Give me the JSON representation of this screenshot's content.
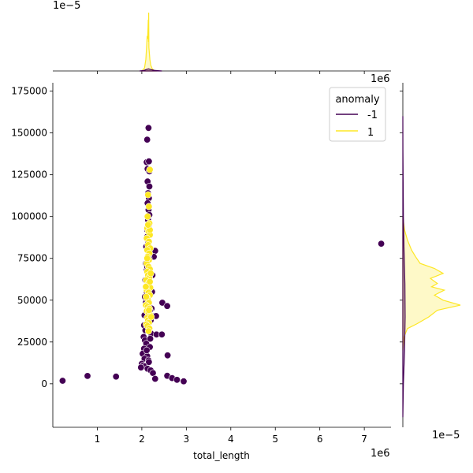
{
  "chart_data": {
    "type": "scatter",
    "title": "",
    "xlabel": "total_length",
    "ylabel": "",
    "x_offset_label": "1e6",
    "y_offset_label": "1e6",
    "top_marginal_offset_label": "1e−5",
    "right_marginal_offset_label": "1e−5",
    "xlim": [
      0.0,
      7.6
    ],
    "ylim": [
      -26000,
      180000
    ],
    "x_ticks": [
      1,
      2,
      3,
      4,
      5,
      6,
      7
    ],
    "y_ticks": [
      0,
      25000,
      50000,
      75000,
      100000,
      125000,
      150000,
      175000
    ],
    "grid": false,
    "legend": {
      "title": "anomaly",
      "placement": "top-right",
      "entries": [
        {
          "label": "-1",
          "color": "#440154"
        },
        {
          "label": "1",
          "color": "#fde725"
        }
      ]
    },
    "series": [
      {
        "name": "-1",
        "color": "#440154",
        "points": [
          [
            0.22,
            1800
          ],
          [
            0.78,
            4700
          ],
          [
            1.42,
            4300
          ],
          [
            7.38,
            83800
          ],
          [
            2.15,
            153000
          ],
          [
            2.12,
            146000
          ],
          [
            2.11,
            132500
          ],
          [
            2.16,
            133000
          ],
          [
            2.13,
            128500
          ],
          [
            2.17,
            127000
          ],
          [
            2.13,
            121000
          ],
          [
            2.17,
            118000
          ],
          [
            2.14,
            114000
          ],
          [
            2.16,
            111000
          ],
          [
            2.13,
            108000
          ],
          [
            2.15,
            104000
          ],
          [
            2.17,
            101000
          ],
          [
            2.14,
            98000
          ],
          [
            2.16,
            95000
          ],
          [
            2.12,
            92000
          ],
          [
            2.3,
            79500
          ],
          [
            2.27,
            76000
          ],
          [
            2.1,
            82000
          ],
          [
            2.12,
            88000
          ],
          [
            2.14,
            85000
          ],
          [
            2.09,
            72000
          ],
          [
            2.11,
            68000
          ],
          [
            2.24,
            65000
          ],
          [
            2.08,
            62000
          ],
          [
            2.1,
            58000
          ],
          [
            2.23,
            55000
          ],
          [
            2.07,
            52000
          ],
          [
            2.09,
            48500
          ],
          [
            2.22,
            45000
          ],
          [
            2.06,
            41000
          ],
          [
            2.29,
            40500
          ],
          [
            2.2,
            38000
          ],
          [
            2.05,
            35000
          ],
          [
            2.08,
            32000
          ],
          [
            2.21,
            30000
          ],
          [
            2.04,
            28000
          ],
          [
            2.07,
            26000
          ],
          [
            2.1,
            24000
          ],
          [
            2.18,
            22000
          ],
          [
            2.05,
            21000
          ],
          [
            2.09,
            19000
          ],
          [
            2.02,
            18000
          ],
          [
            2.12,
            16500
          ],
          [
            2.06,
            15000
          ],
          [
            2.15,
            14000
          ],
          [
            2.0,
            12000
          ],
          [
            2.03,
            11000
          ],
          [
            2.08,
            10500
          ],
          [
            1.98,
            9800
          ],
          [
            2.13,
            9000
          ],
          [
            2.2,
            8000
          ],
          [
            2.25,
            6500
          ],
          [
            2.3,
            3000
          ],
          [
            2.33,
            29500
          ],
          [
            2.46,
            48500
          ],
          [
            2.57,
            46500
          ],
          [
            2.45,
            29500
          ],
          [
            2.58,
            17000
          ],
          [
            2.57,
            4800
          ],
          [
            2.68,
            3400
          ],
          [
            2.79,
            2400
          ],
          [
            2.94,
            1500
          ],
          [
            2.32,
            40500
          ],
          [
            2.11,
            55000
          ],
          [
            2.13,
            60000
          ],
          [
            2.12,
            70000
          ],
          [
            2.16,
            75000
          ],
          [
            2.18,
            44000
          ],
          [
            2.14,
            36000
          ],
          [
            2.19,
            27000
          ],
          [
            2.11,
            20000
          ],
          [
            2.16,
            13000
          ]
        ]
      },
      {
        "name": "1",
        "color": "#fde725",
        "points": [
          [
            2.18,
            128000
          ],
          [
            2.14,
            113000
          ],
          [
            2.16,
            106000
          ],
          [
            2.13,
            100000
          ],
          [
            2.17,
            96000
          ],
          [
            2.12,
            93000
          ],
          [
            2.15,
            91000
          ],
          [
            2.18,
            89000
          ],
          [
            2.11,
            87000
          ],
          [
            2.16,
            85000
          ],
          [
            2.14,
            83000
          ],
          [
            2.19,
            81000
          ],
          [
            2.12,
            80000
          ],
          [
            2.17,
            78000
          ],
          [
            2.13,
            76000
          ],
          [
            2.16,
            74000
          ],
          [
            2.11,
            72000
          ],
          [
            2.15,
            70000
          ],
          [
            2.18,
            68500
          ],
          [
            2.12,
            67000
          ],
          [
            2.14,
            65000
          ],
          [
            2.17,
            63500
          ],
          [
            2.1,
            62000
          ],
          [
            2.16,
            60500
          ],
          [
            2.13,
            59000
          ],
          [
            2.19,
            57500
          ],
          [
            2.11,
            56000
          ],
          [
            2.15,
            54500
          ],
          [
            2.18,
            53000
          ],
          [
            2.12,
            51500
          ],
          [
            2.14,
            50000
          ],
          [
            2.16,
            48500
          ],
          [
            2.09,
            47000
          ],
          [
            2.13,
            46000
          ],
          [
            2.17,
            45000
          ],
          [
            2.11,
            43500
          ],
          [
            2.15,
            42000
          ],
          [
            2.19,
            41000
          ],
          [
            2.12,
            39500
          ],
          [
            2.14,
            38000
          ],
          [
            2.16,
            36500
          ],
          [
            2.1,
            35500
          ],
          [
            2.13,
            34500
          ],
          [
            2.17,
            33000
          ],
          [
            2.15,
            31500
          ],
          [
            2.21,
            40000
          ],
          [
            2.2,
            66000
          ],
          [
            2.09,
            58000
          ],
          [
            2.18,
            92000
          ],
          [
            2.14,
            95000
          ],
          [
            2.12,
            75000
          ],
          [
            2.18,
            61000
          ],
          [
            2.1,
            52000
          ],
          [
            2.16,
            44000
          ]
        ]
      }
    ],
    "marginal_x": {
      "curves": [
        {
          "name": "1",
          "color": "#fde725",
          "x": [
            2.0,
            2.06,
            2.09,
            2.11,
            2.12,
            2.13,
            2.14,
            2.145,
            2.15,
            2.155,
            2.16,
            2.17,
            2.18,
            2.2,
            2.24,
            2.3
          ],
          "density": [
            0.0,
            0.05,
            0.2,
            0.45,
            0.6,
            0.55,
            0.75,
            0.88,
            0.5,
            1.0,
            0.4,
            0.3,
            0.2,
            0.1,
            0.03,
            0.0
          ]
        },
        {
          "name": "-1",
          "color": "#440154",
          "x": [
            1.95,
            2.05,
            2.1,
            2.15,
            2.2,
            2.3,
            2.45
          ],
          "density": [
            0.0,
            0.01,
            0.025,
            0.035,
            0.025,
            0.008,
            0.0
          ]
        }
      ]
    },
    "marginal_y": {
      "curves": [
        {
          "name": "1",
          "color": "#fde725",
          "y": [
            20000,
            28000,
            33000,
            36000,
            40000,
            44000,
            47000,
            50000,
            53000,
            56000,
            58000,
            60000,
            63000,
            66000,
            69000,
            72000,
            76000,
            80000,
            86000,
            92000,
            100000
          ],
          "density": [
            0.0,
            0.02,
            0.08,
            0.25,
            0.45,
            0.6,
            1.0,
            0.7,
            0.55,
            0.72,
            0.5,
            0.6,
            0.48,
            0.7,
            0.55,
            0.3,
            0.22,
            0.15,
            0.08,
            0.03,
            0.0
          ]
        },
        {
          "name": "-1",
          "color": "#440154",
          "y": [
            -20000,
            0,
            20000,
            40000,
            60000,
            80000,
            100000,
            120000,
            140000,
            160000
          ],
          "density": [
            0.0,
            0.01,
            0.03,
            0.04,
            0.035,
            0.02,
            0.01,
            0.005,
            0.002,
            0.0
          ]
        }
      ]
    }
  }
}
